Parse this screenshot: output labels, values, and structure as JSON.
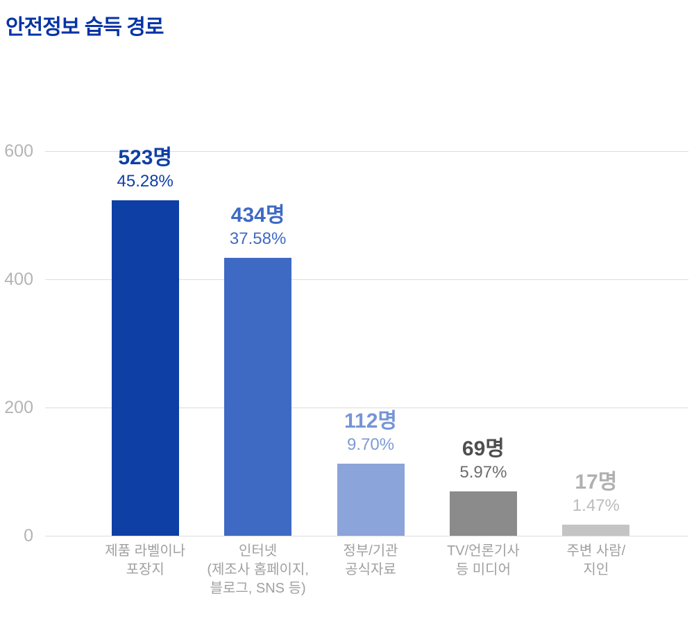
{
  "title": "안전정보 습득 경로",
  "chart_data": {
    "type": "bar",
    "title": "안전정보 습득 경로",
    "xlabel": "",
    "ylabel": "",
    "ylim": [
      0,
      600
    ],
    "yticks": [
      0,
      200,
      400,
      600
    ],
    "grid": "horizontal",
    "categories": [
      "제품 라벨이나\n포장지",
      "인터넷\n(제조사 홈페이지,\n블로그, SNS 등)",
      "정부/기관\n공식자료",
      "TV/언론기사\n등 미디어",
      "주변 사람/\n지인"
    ],
    "values": [
      523,
      434,
      112,
      69,
      17
    ],
    "value_labels": [
      "523명",
      "434명",
      "112명",
      "69명",
      "17명"
    ],
    "pct_labels": [
      "45.28%",
      "37.58%",
      "9.70%",
      "5.97%",
      "1.47%"
    ],
    "bar_colors": [
      "#0e3fa5",
      "#3f6ac3",
      "#8ba4d9",
      "#8b8b8b",
      "#c4c4c4"
    ],
    "name_label_colors": [
      "#0e3fa5",
      "#3f6ac3",
      "#7595d6",
      "#4e4e4e",
      "#b0b0b0"
    ],
    "pct_label_colors": [
      "#0e3fa5",
      "#3f6ac3",
      "#7d9ad8",
      "#6c6c6c",
      "#bcbcbc"
    ]
  },
  "colors": {
    "title": "#0533a6",
    "gridline": "#dcdcdc",
    "y_tick": "#b4b4b4",
    "x_label": "#a0a0a0",
    "background": "#ffffff"
  }
}
